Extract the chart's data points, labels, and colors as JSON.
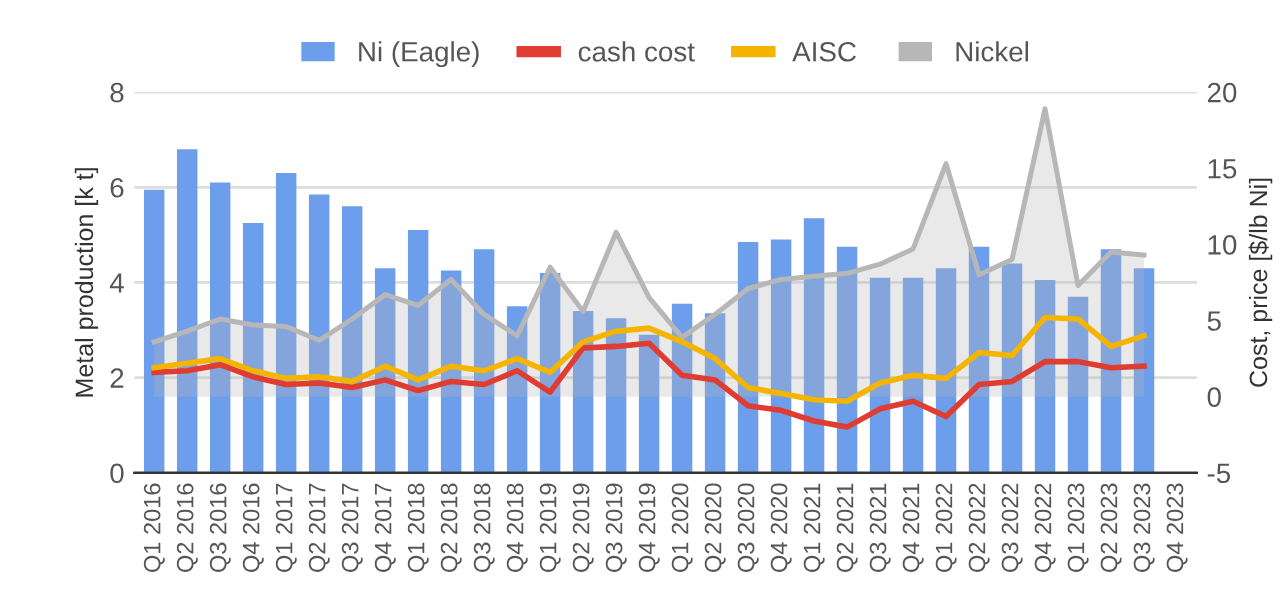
{
  "chart_data": {
    "type": "bar",
    "categories": [
      "Q1 2016",
      "Q2 2016",
      "Q3 2016",
      "Q4 2016",
      "Q1 2017",
      "Q2 2017",
      "Q3 2017",
      "Q4 2017",
      "Q1 2018",
      "Q2 2018",
      "Q3 2018",
      "Q4 2018",
      "Q1 2019",
      "Q2 2019",
      "Q3 2019",
      "Q4 2019",
      "Q1 2020",
      "Q2 2020",
      "Q3 2020",
      "Q4 2020",
      "Q1 2021",
      "Q2 2021",
      "Q3 2021",
      "Q4 2021",
      "Q1 2022",
      "Q2 2022",
      "Q3 2022",
      "Q4 2022",
      "Q1 2023",
      "Q2 2023",
      "Q3 2023",
      "Q4 2023"
    ],
    "series": [
      {
        "name": "Ni (Eagle)",
        "color": "#6d9eeb",
        "values": [
          5.95,
          6.8,
          6.1,
          5.25,
          6.3,
          5.85,
          5.6,
          4.3,
          5.1,
          4.25,
          4.7,
          3.5,
          4.2,
          3.4,
          3.25,
          2.9,
          3.55,
          3.35,
          4.85,
          4.9,
          5.35,
          4.75,
          4.1,
          4.1,
          4.3,
          4.75,
          4.4,
          4.05,
          3.7,
          4.7,
          4.3,
          null
        ]
      },
      {
        "name": "cash cost",
        "type": "line",
        "axis": "y2",
        "color": "#e03c31",
        "values": [
          1.6,
          1.7,
          2.1,
          1.3,
          0.8,
          0.9,
          0.6,
          1.1,
          0.4,
          1.0,
          0.8,
          1.7,
          0.3,
          3.2,
          3.3,
          3.5,
          1.4,
          1.1,
          -0.6,
          -0.9,
          -1.6,
          -2.0,
          -0.8,
          -0.3,
          -1.3,
          0.8,
          1.0,
          2.3,
          2.3,
          1.9,
          2.0,
          null
        ]
      },
      {
        "name": "AISC",
        "type": "line",
        "axis": "y2",
        "color": "#f4b400",
        "values": [
          1.9,
          2.2,
          2.5,
          1.7,
          1.2,
          1.3,
          1.0,
          2.0,
          1.1,
          2.0,
          1.7,
          2.5,
          1.6,
          3.6,
          4.3,
          4.5,
          3.6,
          2.5,
          0.6,
          0.2,
          -0.2,
          -0.3,
          0.9,
          1.4,
          1.2,
          2.9,
          2.7,
          5.2,
          5.1,
          3.3,
          4.0,
          null
        ]
      },
      {
        "name": "Nickel",
        "type": "area",
        "axis": "y2",
        "color": "#b7b7b7",
        "values": [
          3.6,
          4.3,
          5.1,
          4.7,
          4.6,
          3.7,
          5.1,
          6.7,
          6.0,
          7.7,
          5.4,
          4.0,
          8.5,
          5.6,
          10.8,
          6.5,
          3.9,
          5.4,
          7.1,
          7.7,
          7.9,
          8.1,
          8.7,
          9.7,
          15.3,
          8.0,
          9.0,
          18.9,
          7.3,
          9.5,
          9.3,
          null
        ]
      }
    ],
    "ylabel": "Metal production [k t]",
    "y2label": "Cost, price [$/lb Ni]",
    "ylim": [
      0,
      8
    ],
    "yticks": [
      0,
      2,
      4,
      6,
      8
    ],
    "y2lim": [
      -5,
      20
    ],
    "y2ticks": [
      -5,
      0,
      5,
      10,
      15,
      20
    ],
    "grid": "y",
    "legend": "top"
  }
}
